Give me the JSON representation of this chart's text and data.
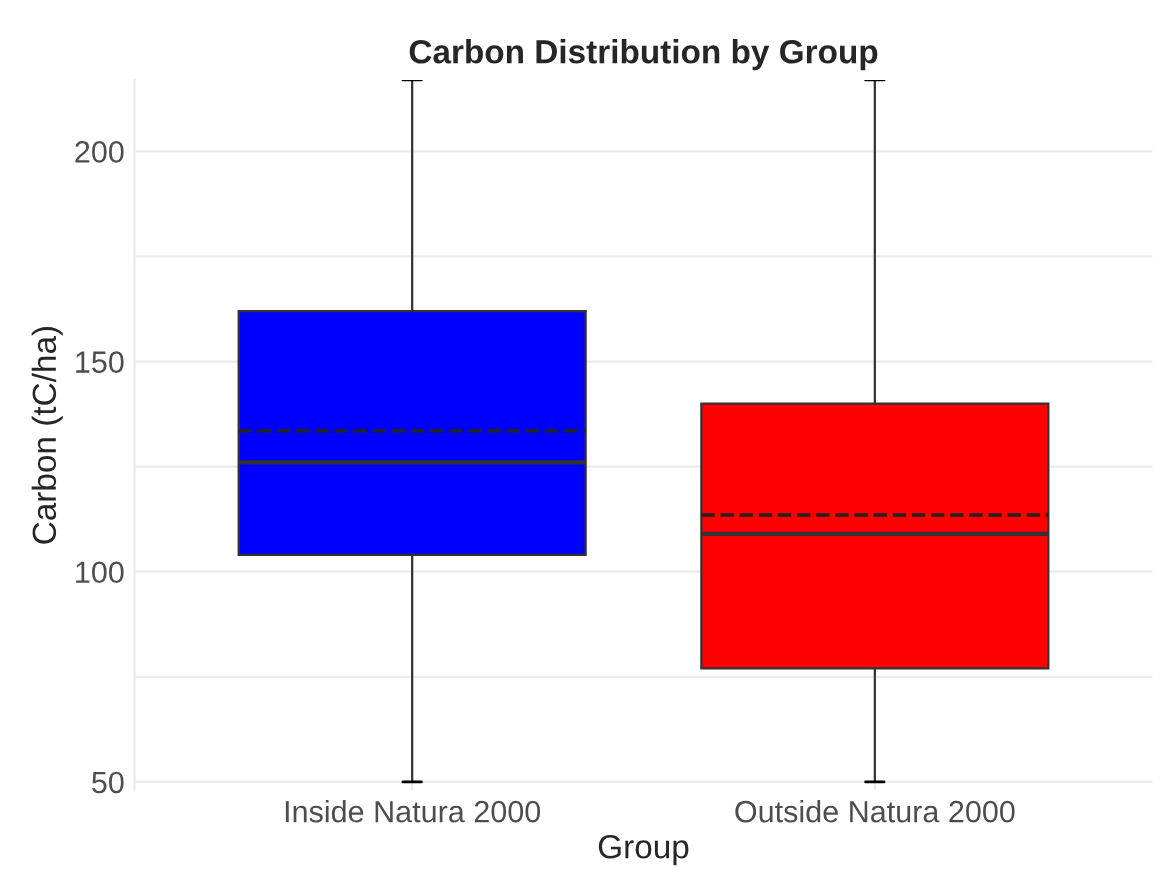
{
  "chart_data": {
    "type": "box",
    "title": "Carbon Distribution by Group",
    "xlabel": "Group",
    "ylabel": "Carbon (tC/ha)",
    "categories": [
      "Inside Natura 2000",
      "Outside Natura 2000"
    ],
    "colors": [
      "#0000ff",
      "#ff0000"
    ],
    "boxes": [
      {
        "low": 50,
        "q1": 104,
        "median": 126,
        "q3": 162,
        "high": 217,
        "mean": 133.5
      },
      {
        "low": 50,
        "q1": 77,
        "median": 109,
        "q3": 140,
        "high": 217,
        "mean": 113.5
      }
    ],
    "ylim": [
      48,
      217
    ],
    "yticks": [
      50,
      {
        "value": 75,
        "label": null
      },
      100,
      {
        "value": 125,
        "label": null
      },
      150,
      {
        "value": 175,
        "label": null
      },
      200
    ],
    "grid": true,
    "legend": false
  }
}
